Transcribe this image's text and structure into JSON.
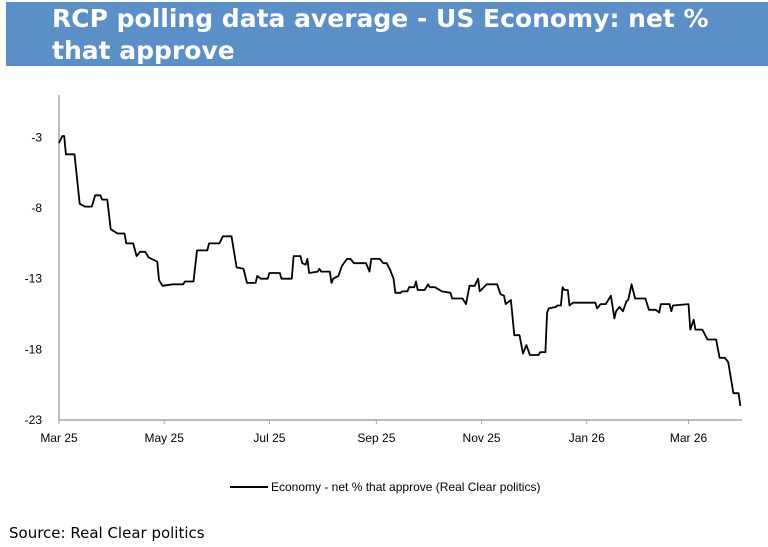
{
  "header": {
    "title": "RCP polling data average - US Economy: net % that approve"
  },
  "source": "Source: Real Clear politics",
  "colors": {
    "header_bg": "#5b8fc8",
    "line": "#000000",
    "axis": "#a6a6a6"
  },
  "chart_data": {
    "type": "line",
    "title": "RCP polling data average - US Economy: net % that approve",
    "xlabel": "",
    "ylabel": "",
    "xlim": [
      "2025-03-01",
      "2026-04-01"
    ],
    "ylim": [
      -23,
      0
    ],
    "yticks": [
      -3,
      -8,
      -13,
      -18,
      -23
    ],
    "xticks": [
      {
        "date": "2025-03-01",
        "label": "Mar 25"
      },
      {
        "date": "2025-05-01",
        "label": "May 25"
      },
      {
        "date": "2025-07-01",
        "label": "Jul 25"
      },
      {
        "date": "2025-09-01",
        "label": "Sep 25"
      },
      {
        "date": "2025-11-01",
        "label": "Nov 25"
      },
      {
        "date": "2026-01-01",
        "label": "Jan 26"
      },
      {
        "date": "2026-03-01",
        "label": "Mar 26"
      }
    ],
    "grid": false,
    "legend": "bottom",
    "series": [
      {
        "name": "Economy - net % that approve (Real Clear politics)",
        "color": "#000000",
        "points": [
          [
            "2025-03-01",
            -3.4
          ],
          [
            "2025-03-03",
            -2.9
          ],
          [
            "2025-03-04",
            -2.9
          ],
          [
            "2025-03-05",
            -4.2
          ],
          [
            "2025-03-10",
            -4.2
          ],
          [
            "2025-03-13",
            -7.7
          ],
          [
            "2025-03-16",
            -7.9
          ],
          [
            "2025-03-20",
            -7.9
          ],
          [
            "2025-03-22",
            -7.1
          ],
          [
            "2025-03-25",
            -7.1
          ],
          [
            "2025-03-26",
            -7.4
          ],
          [
            "2025-03-29",
            -7.4
          ],
          [
            "2025-03-31",
            -9.5
          ],
          [
            "2025-04-04",
            -9.8
          ],
          [
            "2025-04-08",
            -9.8
          ],
          [
            "2025-04-09",
            -10.5
          ],
          [
            "2025-04-13",
            -10.5
          ],
          [
            "2025-04-15",
            -11.4
          ],
          [
            "2025-04-17",
            -11.1
          ],
          [
            "2025-04-20",
            -11.1
          ],
          [
            "2025-04-22",
            -11.5
          ],
          [
            "2025-04-27",
            -11.8
          ],
          [
            "2025-04-28",
            -13.1
          ],
          [
            "2025-04-30",
            -13.5
          ],
          [
            "2025-05-06",
            -13.4
          ],
          [
            "2025-05-12",
            -13.4
          ],
          [
            "2025-05-13",
            -13.2
          ],
          [
            "2025-05-18",
            -13.2
          ],
          [
            "2025-05-20",
            -11.0
          ],
          [
            "2025-05-26",
            -11.0
          ],
          [
            "2025-05-27",
            -10.5
          ],
          [
            "2025-06-02",
            -10.5
          ],
          [
            "2025-06-04",
            -10.0
          ],
          [
            "2025-06-09",
            -10.0
          ],
          [
            "2025-06-12",
            -12.2
          ],
          [
            "2025-06-16",
            -12.3
          ],
          [
            "2025-06-18",
            -13.3
          ],
          [
            "2025-06-23",
            -13.3
          ],
          [
            "2025-06-24",
            -12.8
          ],
          [
            "2025-06-26",
            -13.0
          ],
          [
            "2025-06-30",
            -13.0
          ],
          [
            "2025-07-01",
            -12.6
          ],
          [
            "2025-07-07",
            -12.6
          ],
          [
            "2025-07-08",
            -13.0
          ],
          [
            "2025-07-14",
            -13.0
          ],
          [
            "2025-07-15",
            -11.4
          ],
          [
            "2025-07-19",
            -11.4
          ],
          [
            "2025-07-20",
            -11.9
          ],
          [
            "2025-07-22",
            -12.0
          ],
          [
            "2025-07-23",
            -11.6
          ],
          [
            "2025-07-24",
            -12.6
          ],
          [
            "2025-07-29",
            -12.5
          ],
          [
            "2025-07-30",
            -12.3
          ],
          [
            "2025-07-31",
            -12.5
          ],
          [
            "2025-08-05",
            -12.5
          ],
          [
            "2025-08-06",
            -13.3
          ],
          [
            "2025-08-07",
            -13.0
          ],
          [
            "2025-08-10",
            -12.8
          ],
          [
            "2025-08-12",
            -12.1
          ],
          [
            "2025-08-15",
            -11.6
          ],
          [
            "2025-08-17",
            -11.6
          ],
          [
            "2025-08-19",
            -11.9
          ],
          [
            "2025-08-26",
            -11.9
          ],
          [
            "2025-08-28",
            -12.5
          ],
          [
            "2025-08-29",
            -11.6
          ],
          [
            "2025-09-03",
            -11.6
          ],
          [
            "2025-09-05",
            -11.9
          ],
          [
            "2025-09-07",
            -11.9
          ],
          [
            "2025-09-09",
            -12.4
          ],
          [
            "2025-09-11",
            -13.0
          ],
          [
            "2025-09-12",
            -14.0
          ],
          [
            "2025-09-15",
            -14.0
          ],
          [
            "2025-09-16",
            -13.9
          ],
          [
            "2025-09-19",
            -13.9
          ],
          [
            "2025-09-20",
            -13.6
          ],
          [
            "2025-09-23",
            -13.6
          ],
          [
            "2025-09-24",
            -13.2
          ],
          [
            "2025-09-25",
            -13.8
          ],
          [
            "2025-09-29",
            -13.8
          ],
          [
            "2025-10-01",
            -13.4
          ],
          [
            "2025-10-02",
            -13.6
          ],
          [
            "2025-10-05",
            -13.6
          ],
          [
            "2025-10-09",
            -13.9
          ],
          [
            "2025-10-14",
            -14.0
          ],
          [
            "2025-10-15",
            -14.4
          ],
          [
            "2025-10-21",
            -14.4
          ],
          [
            "2025-10-23",
            -14.8
          ],
          [
            "2025-10-25",
            -13.5
          ],
          [
            "2025-10-28",
            -13.5
          ],
          [
            "2025-10-30",
            -13.0
          ],
          [
            "2025-10-31",
            -13.9
          ],
          [
            "2025-11-04",
            -13.4
          ],
          [
            "2025-11-10",
            -13.4
          ],
          [
            "2025-11-12",
            -14.1
          ],
          [
            "2025-11-14",
            -14.2
          ],
          [
            "2025-11-15",
            -14.8
          ],
          [
            "2025-11-18",
            -14.5
          ],
          [
            "2025-11-20",
            -17.0
          ],
          [
            "2025-11-23",
            -17.0
          ],
          [
            "2025-11-25",
            -18.3
          ],
          [
            "2025-11-27",
            -17.7
          ],
          [
            "2025-11-29",
            -18.4
          ],
          [
            "2025-12-04",
            -18.4
          ],
          [
            "2025-12-05",
            -18.2
          ],
          [
            "2025-12-08",
            -18.2
          ],
          [
            "2025-12-09",
            -15.4
          ],
          [
            "2025-12-10",
            -15.1
          ],
          [
            "2025-12-14",
            -15.0
          ],
          [
            "2025-12-15",
            -14.9
          ],
          [
            "2025-12-17",
            -14.9
          ],
          [
            "2025-12-18",
            -13.6
          ],
          [
            "2025-12-19",
            -13.8
          ],
          [
            "2025-12-21",
            -13.8
          ],
          [
            "2025-12-22",
            -14.9
          ],
          [
            "2025-12-24",
            -14.7
          ],
          [
            "2026-01-06",
            -14.7
          ],
          [
            "2026-01-07",
            -15.1
          ],
          [
            "2026-01-09",
            -14.8
          ],
          [
            "2026-01-12",
            -14.8
          ],
          [
            "2026-01-15",
            -14.2
          ],
          [
            "2026-01-17",
            -15.8
          ],
          [
            "2026-01-18",
            -15.3
          ],
          [
            "2026-01-20",
            -15.0
          ],
          [
            "2026-01-22",
            -15.3
          ],
          [
            "2026-01-24",
            -14.6
          ],
          [
            "2026-01-25",
            -14.5
          ],
          [
            "2026-01-27",
            -13.4
          ],
          [
            "2026-01-29",
            -14.4
          ],
          [
            "2026-02-04",
            -14.4
          ],
          [
            "2026-02-06",
            -15.2
          ],
          [
            "2026-02-10",
            -15.2
          ],
          [
            "2026-02-12",
            -15.4
          ],
          [
            "2026-02-13",
            -14.8
          ],
          [
            "2026-02-18",
            -14.8
          ],
          [
            "2026-02-19",
            -15.3
          ],
          [
            "2026-02-20",
            -14.9
          ],
          [
            "2026-03-01",
            -14.8
          ],
          [
            "2026-03-02",
            -16.6
          ],
          [
            "2026-03-04",
            -15.9
          ],
          [
            "2026-03-05",
            -16.6
          ],
          [
            "2026-03-09",
            -16.6
          ],
          [
            "2026-03-12",
            -17.3
          ],
          [
            "2026-03-17",
            -17.3
          ],
          [
            "2026-03-19",
            -18.6
          ],
          [
            "2026-03-22",
            -18.6
          ],
          [
            "2026-03-24",
            -18.9
          ],
          [
            "2026-03-27",
            -21.1
          ],
          [
            "2026-03-30",
            -21.1
          ],
          [
            "2026-03-31",
            -22.0
          ]
        ]
      }
    ]
  }
}
